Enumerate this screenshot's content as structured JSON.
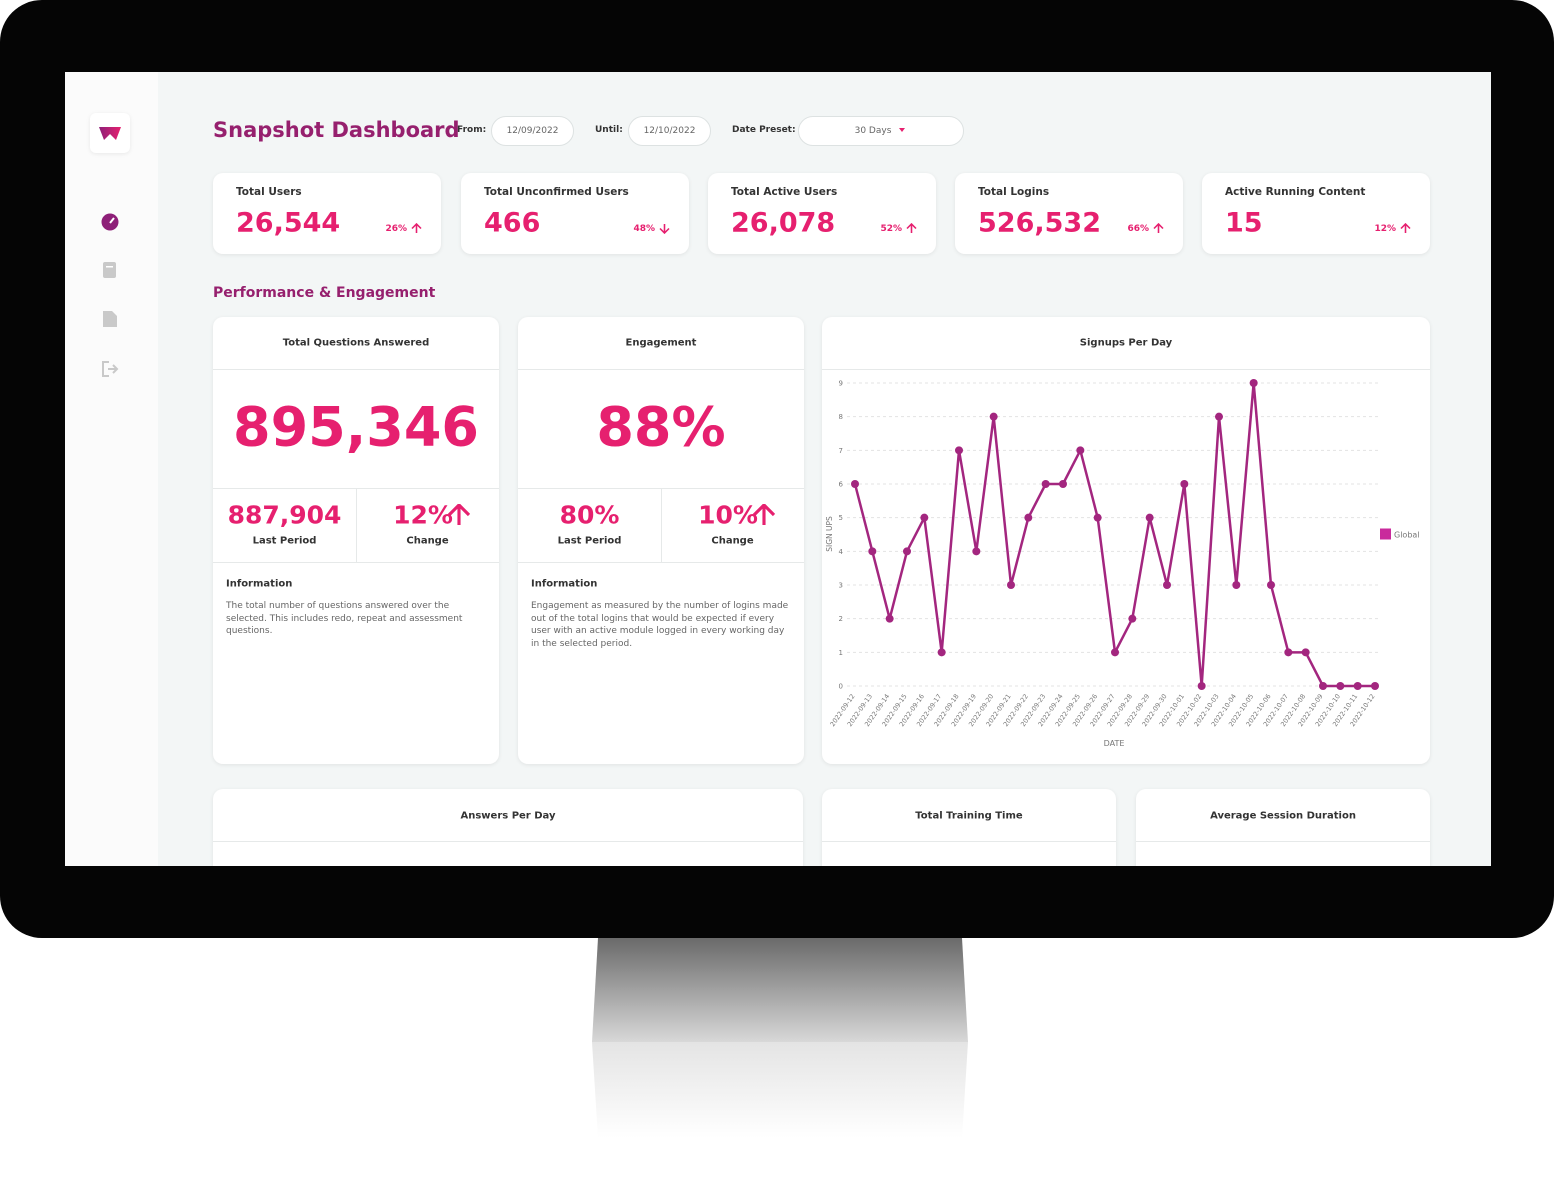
{
  "header": {
    "title": "Snapshot Dashboard",
    "from_label": "From:",
    "from_value": "12/09/2022",
    "until_label": "Until:",
    "until_value": "12/10/2022",
    "preset_label": "Date Preset:",
    "preset_value": "30 Days"
  },
  "kpis": [
    {
      "label": "Total Users",
      "value": "26,544",
      "change": "26%",
      "direction": "up"
    },
    {
      "label": "Total Unconfirmed Users",
      "value": "466",
      "change": "48%",
      "direction": "down"
    },
    {
      "label": "Total Active Users",
      "value": "26,078",
      "change": "52%",
      "direction": "up"
    },
    {
      "label": "Total Logins",
      "value": "526,532",
      "change": "66%",
      "direction": "up"
    },
    {
      "label": "Active Running Content",
      "value": "15",
      "change": "12%",
      "direction": "up"
    }
  ],
  "section_title": "Performance & Engagement",
  "panels": [
    {
      "title": "Total Questions Answered",
      "value": "895,346",
      "last_period_value": "887,904",
      "last_period_label": "Last Period",
      "change_value": "12%",
      "change_direction": "up",
      "change_label": "Change",
      "info_title": "Information",
      "info_text": "The total number of questions answered over the selected. This includes redo, repeat and assessment questions."
    },
    {
      "title": "Engagement",
      "value": "88%",
      "last_period_value": "80%",
      "last_period_label": "Last Period",
      "change_value": "10%",
      "change_direction": "up",
      "change_label": "Change",
      "info_title": "Information",
      "info_text": "Engagement as measured by the number of logins made out of the total logins that would be expected if every user with an active module logged in every working day in the selected period."
    }
  ],
  "chart_data": {
    "type": "line",
    "title": "Signups Per Day",
    "x_label": "DATE",
    "y_label": "SIGN UPS",
    "categories": [
      "2022-09-12",
      "2022-09-13",
      "2022-09-14",
      "2022-09-15",
      "2022-09-16",
      "2022-09-17",
      "2022-09-18",
      "2022-09-19",
      "2022-09-20",
      "2022-09-21",
      "2022-09-22",
      "2022-09-23",
      "2022-09-24",
      "2022-09-25",
      "2022-09-26",
      "2022-09-27",
      "2022-09-28",
      "2022-09-29",
      "2022-09-30",
      "2022-10-01",
      "2022-10-02",
      "2022-10-03",
      "2022-10-04",
      "2022-10-05",
      "2022-10-06",
      "2022-10-07",
      "2022-10-08",
      "2022-10-09",
      "2022-10-10",
      "2022-10-11",
      "2022-10-12"
    ],
    "series": [
      {
        "name": "Global",
        "color": "#a3267f",
        "legend_color": "#c92a9c",
        "values": [
          6,
          4,
          2,
          4,
          5,
          1,
          7,
          4,
          8,
          3,
          5,
          6,
          6,
          7,
          5,
          1,
          2,
          5,
          3,
          6,
          0,
          8,
          3,
          9,
          3,
          1,
          1,
          0,
          0,
          0,
          0
        ]
      }
    ],
    "ylim": [
      0,
      9
    ],
    "yticks": [
      0,
      1,
      2,
      3,
      4,
      5,
      6,
      7,
      8,
      9
    ],
    "grid": true,
    "legend": "right"
  },
  "bottom_panels": [
    "Answers Per Day",
    "Total Training Time",
    "Average Session Duration"
  ]
}
